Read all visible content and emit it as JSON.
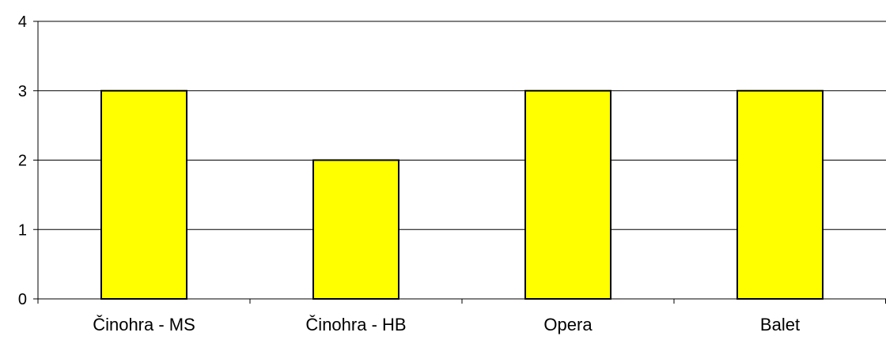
{
  "chart_data": {
    "type": "bar",
    "title": "",
    "xlabel": "",
    "ylabel": "",
    "categories": [
      "Činohra - MS",
      "Činohra - HB",
      "Opera",
      "Balet"
    ],
    "values": [
      3,
      2,
      3,
      3
    ],
    "ylim": [
      0,
      4
    ],
    "yticks": [
      "0",
      "1",
      "2",
      "3",
      "4"
    ],
    "grid": true,
    "legend": "none",
    "colors": {
      "bar_fill": "#FFFF00",
      "bar_stroke": "#000000",
      "grid": "#000000"
    }
  }
}
